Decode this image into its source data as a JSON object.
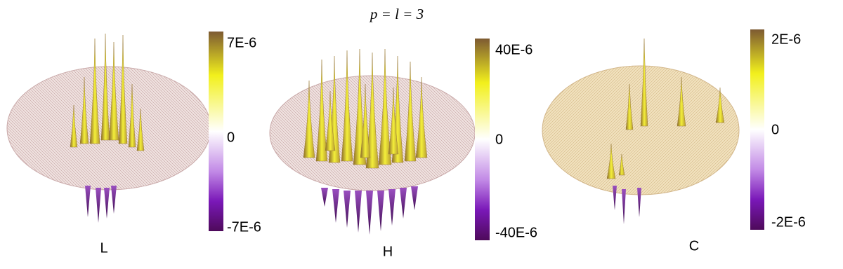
{
  "title": "p = l = 3",
  "panels": [
    {
      "label": "L",
      "colorbar": {
        "ticks": [
          "7E-6",
          "0",
          "-7E-6"
        ]
      }
    },
    {
      "label": "H",
      "colorbar": {
        "ticks": [
          "40E-6",
          "0",
          "-40E-6"
        ]
      }
    },
    {
      "label": "C",
      "colorbar": {
        "ticks": [
          "2E-6",
          "0",
          "-2E-6"
        ]
      }
    }
  ]
}
